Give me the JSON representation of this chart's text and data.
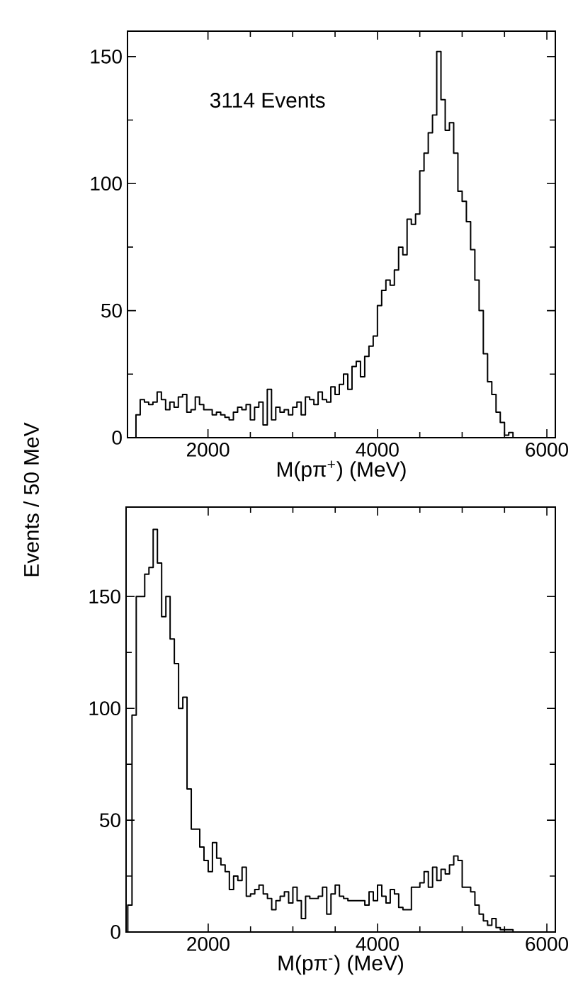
{
  "chart_data": [
    {
      "type": "histogram",
      "xlabel": "M(pπ$^{+}$)  (MeV)",
      "ylabel": "Events / 50 MeV",
      "annotations": [
        "3114 Events"
      ],
      "color": "#000000",
      "bins": [
        1150,
        1200,
        1250,
        1300,
        1350,
        1400,
        1450,
        1500,
        1550,
        1600,
        1650,
        1700,
        1750,
        1800,
        1850,
        1900,
        1950,
        2000,
        2050,
        2100,
        2150,
        2200,
        2250,
        2300,
        2350,
        2400,
        2450,
        2500,
        2550,
        2600,
        2650,
        2700,
        2750,
        2800,
        2850,
        2900,
        2950,
        3000,
        3050,
        3100,
        3150,
        3200,
        3250,
        3300,
        3350,
        3400,
        3450,
        3500,
        3550,
        3600,
        3650,
        3700,
        3750,
        3800,
        3850,
        3900,
        3950,
        4000,
        4050,
        4100,
        4150,
        4200,
        4250,
        4300,
        4350,
        4400,
        4450,
        4500,
        4550,
        4600,
        4650,
        4700,
        4750,
        4800,
        4850,
        4900,
        4950,
        5000,
        5050,
        5100,
        5150,
        5200,
        5250,
        5300,
        5350,
        5400,
        5450,
        5500,
        5550,
        5600
      ],
      "values": [
        9,
        15,
        14,
        13,
        14,
        18,
        15,
        11,
        14,
        12,
        16,
        17,
        10,
        11,
        16,
        13,
        11,
        11,
        9,
        10,
        9,
        8,
        7,
        10,
        12,
        11,
        13,
        7,
        12,
        14,
        5,
        19,
        7,
        12,
        10,
        11,
        9,
        12,
        14,
        9,
        16,
        15,
        13,
        18,
        15,
        14,
        20,
        17,
        21,
        25,
        19,
        28,
        30,
        24,
        32,
        36,
        40,
        52,
        58,
        62,
        60,
        66,
        75,
        72,
        86,
        84,
        88,
        105,
        112,
        120,
        127,
        152,
        133,
        121,
        124,
        112,
        97,
        93,
        85,
        74,
        62,
        50,
        33,
        22,
        17,
        10,
        6,
        1,
        2
      ],
      "xlim": [
        1050,
        6100
      ],
      "ylim": [
        0,
        160
      ],
      "xticks": [
        2000,
        4000,
        6000
      ],
      "yticks": [
        0,
        50,
        100,
        150
      ]
    },
    {
      "type": "histogram",
      "xlabel": "M(pπ$^{-}$)  (MeV)",
      "color": "#000000",
      "bins": [
        1050,
        1100,
        1150,
        1200,
        1250,
        1300,
        1350,
        1400,
        1450,
        1500,
        1550,
        1600,
        1650,
        1700,
        1750,
        1800,
        1850,
        1900,
        1950,
        2000,
        2050,
        2100,
        2150,
        2200,
        2250,
        2300,
        2350,
        2400,
        2450,
        2500,
        2550,
        2600,
        2650,
        2700,
        2750,
        2800,
        2850,
        2900,
        2950,
        3000,
        3050,
        3100,
        3150,
        3200,
        3250,
        3300,
        3350,
        3400,
        3450,
        3500,
        3550,
        3600,
        3650,
        3700,
        3750,
        3800,
        3850,
        3900,
        3950,
        4000,
        4050,
        4100,
        4150,
        4200,
        4250,
        4300,
        4350,
        4400,
        4450,
        4500,
        4550,
        4600,
        4650,
        4700,
        4750,
        4800,
        4850,
        4900,
        4950,
        5000,
        5050,
        5100,
        5150,
        5200,
        5250,
        5300,
        5350,
        5400,
        5450,
        5500,
        5550,
        5600
      ],
      "values": [
        12,
        97,
        150,
        150,
        160,
        163,
        180,
        165,
        141,
        150,
        131,
        120,
        100,
        105,
        64,
        46,
        46,
        38,
        32,
        27,
        40,
        33,
        30,
        27,
        19,
        25,
        23,
        29,
        16,
        17,
        19,
        21,
        17,
        15,
        10,
        14,
        16,
        18,
        13,
        20,
        14,
        6,
        16,
        15,
        15,
        16,
        20,
        8,
        17,
        21,
        16,
        15,
        14,
        14,
        14,
        14,
        12,
        18,
        14,
        21,
        16,
        13,
        19,
        17,
        11,
        10,
        10,
        20,
        20,
        22,
        27,
        20,
        29,
        23,
        28,
        26,
        30,
        34,
        32,
        20,
        20,
        18,
        12,
        8,
        5,
        3,
        6,
        2,
        1,
        1,
        1
      ],
      "xlim": [
        1030,
        6100
      ],
      "ylim": [
        0,
        190
      ],
      "xticks": [
        2000,
        4000,
        6000
      ],
      "yticks": [
        0,
        50,
        100,
        150
      ]
    }
  ]
}
